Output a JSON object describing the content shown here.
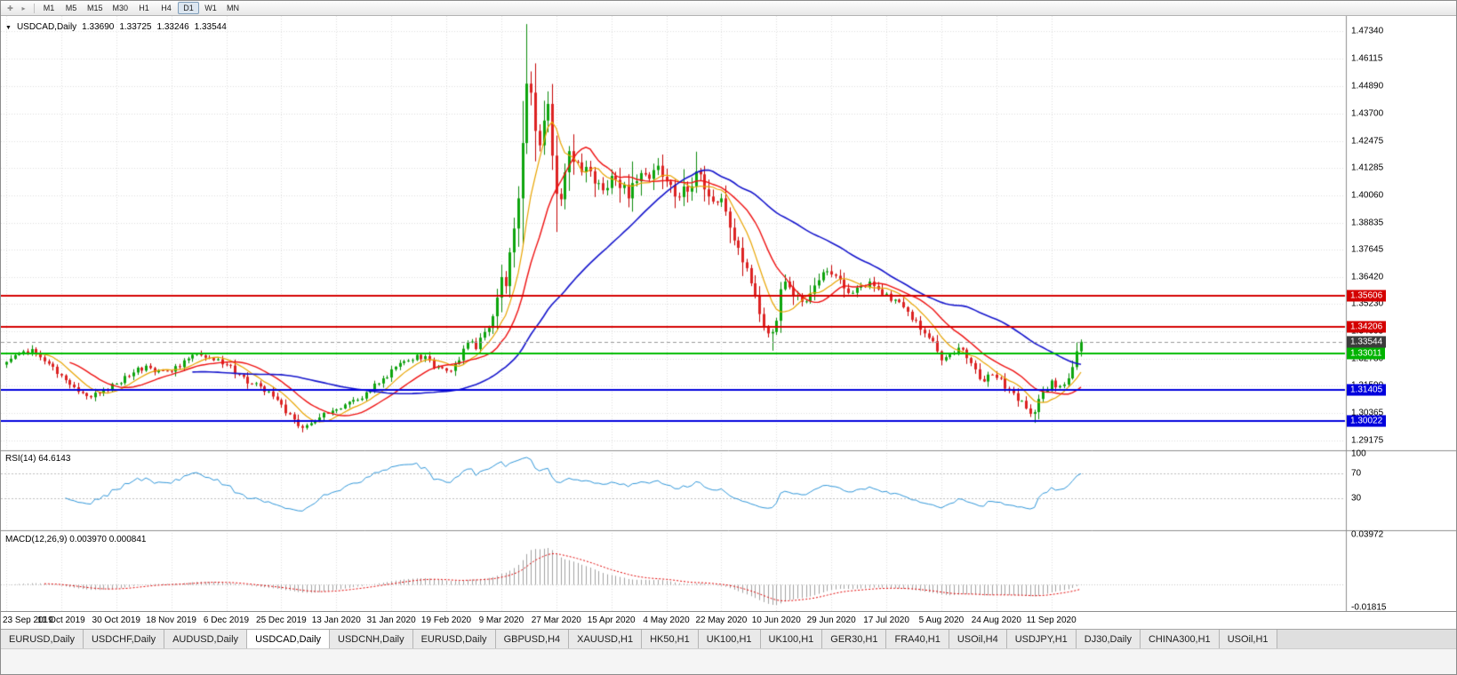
{
  "toolbar": {
    "icons": [
      {
        "name": "crosshair-icon",
        "glyph": "✚"
      },
      {
        "name": "chart-shift-icon",
        "glyph": "▸"
      }
    ],
    "timeframes": [
      "M1",
      "M5",
      "M15",
      "M30",
      "H1",
      "H4",
      "D1",
      "W1",
      "MN"
    ],
    "active_timeframe": "D1"
  },
  "chart_header": {
    "symbol": "USDCAD,Daily",
    "open": "1.33690",
    "high": "1.33725",
    "low": "1.33246",
    "close": "1.33544"
  },
  "price_scale": {
    "ticks": [
      "1.47340",
      "1.46115",
      "1.44890",
      "1.43700",
      "1.42475",
      "1.41285",
      "1.40060",
      "1.38835",
      "1.37645",
      "1.36420",
      "1.35230",
      "1.34005",
      "1.32780",
      "1.31590",
      "1.30365",
      "1.29175"
    ],
    "line_labels": [
      {
        "value": "1.35606",
        "price": 1.35606,
        "color": "#d40000"
      },
      {
        "value": "1.34206",
        "price": 1.34206,
        "color": "#d40000"
      },
      {
        "value": "1.33544",
        "price": 1.33544,
        "color": "#3c3c3c"
      },
      {
        "value": "1.33011",
        "price": 1.33011,
        "color": "#00b300"
      },
      {
        "value": "1.31405",
        "price": 1.31405,
        "color": "#0000dd"
      },
      {
        "value": "1.30022",
        "price": 1.30022,
        "color": "#0000dd"
      }
    ]
  },
  "rsi": {
    "label": "RSI(14) 64.6143",
    "period": 14,
    "value": 64.6143,
    "ticks": [
      "100",
      "70",
      "30"
    ],
    "levels": [
      70,
      30
    ],
    "color": "#2e95d8"
  },
  "macd": {
    "label": "MACD(12,26,9) 0.003970 0.000841",
    "fast": 12,
    "slow": 26,
    "signal_period": 9,
    "macd_value": "0.003970",
    "signal_value": "0.000841",
    "ticks": [
      "0.03972",
      "-0.01815"
    ],
    "histogram_color": "#a0a0a0",
    "signal_color": "#e00000"
  },
  "date_axis": [
    "23 Sep 2019",
    "11 Oct 2019",
    "30 Oct 2019",
    "18 Nov 2019",
    "6 Dec 2019",
    "25 Dec 2019",
    "13 Jan 2020",
    "31 Jan 2020",
    "19 Feb 2020",
    "9 Mar 2020",
    "27 Mar 2020",
    "15 Apr 2020",
    "4 May 2020",
    "22 May 2020",
    "10 Jun 2020",
    "29 Jun 2020",
    "17 Jul 2020",
    "5 Aug 2020",
    "24 Aug 2020",
    "11 Sep 2020"
  ],
  "tabs": {
    "items": [
      "EURUSD,Daily",
      "USDCHF,Daily",
      "AUDUSD,Daily",
      "USDCAD,Daily",
      "USDCNH,Daily",
      "EURUSD,Daily",
      "GBPUSD,H4",
      "XAUUSD,H1",
      "HK50,H1",
      "UK100,H1",
      "UK100,H1",
      "GER30,H1",
      "FRA40,H1",
      "USOil,H4",
      "USDJPY,H1",
      "DJ30,Daily",
      "CHINA300,H1",
      "USOil,H1"
    ],
    "active_index": 3
  },
  "chart_data": {
    "type": "candlestick",
    "symbol": "USDCAD",
    "timeframe": "Daily",
    "title": "USDCAD,Daily",
    "bars": 255,
    "date_tick_bars": 13,
    "x_range_dates": [
      "23 Sep 2019",
      "22 Sep 2020"
    ],
    "price_range": [
      1.288,
      1.4795
    ],
    "up_color": "#0da50d",
    "down_color": "#dd2222",
    "up_wick_color": "#0a8a0a",
    "down_wick_color": "#c40000",
    "keyframes": [
      [
        0,
        1.3265
      ],
      [
        3,
        1.3305
      ],
      [
        6,
        1.3322
      ],
      [
        9,
        1.3268
      ],
      [
        13,
        1.3205
      ],
      [
        17,
        1.3132
      ],
      [
        20,
        1.3108
      ],
      [
        23,
        1.3142
      ],
      [
        26,
        1.3168
      ],
      [
        30,
        1.3218
      ],
      [
        33,
        1.3248
      ],
      [
        36,
        1.3228
      ],
      [
        39,
        1.3222
      ],
      [
        42,
        1.3272
      ],
      [
        45,
        1.3302
      ],
      [
        48,
        1.3282
      ],
      [
        52,
        1.3252
      ],
      [
        55,
        1.3208
      ],
      [
        58,
        1.3168
      ],
      [
        61,
        1.3132
      ],
      [
        64,
        1.3096
      ],
      [
        67,
        1.3032
      ],
      [
        70,
        1.2972
      ],
      [
        73,
        1.3002
      ],
      [
        76,
        1.3038
      ],
      [
        79,
        1.3058
      ],
      [
        82,
        1.3096
      ],
      [
        86,
        1.3136
      ],
      [
        89,
        1.3192
      ],
      [
        91,
        1.3232
      ],
      [
        94,
        1.3268
      ],
      [
        97,
        1.3296
      ],
      [
        100,
        1.3272
      ],
      [
        102,
        1.3242
      ],
      [
        104,
        1.3226
      ],
      [
        107,
        1.3272
      ],
      [
        109,
        1.3352
      ],
      [
        111,
        1.3322
      ],
      [
        113,
        1.3398
      ],
      [
        115,
        1.3468
      ],
      [
        117,
        1.3642
      ],
      [
        118,
        1.3602
      ],
      [
        119,
        1.3752
      ],
      [
        120,
        1.3858
      ],
      [
        121,
        1.3992
      ],
      [
        122,
        1.4238
      ],
      [
        123,
        1.4502
      ],
      [
        124,
        1.4462
      ],
      [
        125,
        1.4292
      ],
      [
        126,
        1.4228
      ],
      [
        127,
        1.4338
      ],
      [
        128,
        1.4412
      ],
      [
        129,
        1.4182
      ],
      [
        130,
        1.4012
      ],
      [
        131,
        1.3988
      ],
      [
        132,
        1.4108
      ],
      [
        133,
        1.4202
      ],
      [
        135,
        1.4152
      ],
      [
        137,
        1.4132
      ],
      [
        139,
        1.4058
      ],
      [
        141,
        1.4028
      ],
      [
        143,
        1.4092
      ],
      [
        145,
        1.4038
      ],
      [
        147,
        1.3992
      ],
      [
        149,
        1.4068
      ],
      [
        151,
        1.4098
      ],
      [
        153,
        1.4118
      ],
      [
        155,
        1.4088
      ],
      [
        157,
        1.4052
      ],
      [
        159,
        1.3998
      ],
      [
        161,
        1.4022
      ],
      [
        163,
        1.4112
      ],
      [
        165,
        1.4032
      ],
      [
        167,
        1.3978
      ],
      [
        169,
        1.3992
      ],
      [
        171,
        1.3862
      ],
      [
        173,
        1.3772
      ],
      [
        175,
        1.3682
      ],
      [
        177,
        1.3562
      ],
      [
        179,
        1.3422
      ],
      [
        181,
        1.3398
      ],
      [
        182,
        1.3448
      ],
      [
        183,
        1.3588
      ],
      [
        184,
        1.3622
      ],
      [
        186,
        1.3558
      ],
      [
        188,
        1.3532
      ],
      [
        190,
        1.3568
      ],
      [
        192,
        1.3628
      ],
      [
        194,
        1.3668
      ],
      [
        196,
        1.3648
      ],
      [
        198,
        1.3592
      ],
      [
        200,
        1.3572
      ],
      [
        202,
        1.3602
      ],
      [
        204,
        1.3622
      ],
      [
        206,
        1.3588
      ],
      [
        208,
        1.3568
      ],
      [
        210,
        1.3542
      ],
      [
        212,
        1.3508
      ],
      [
        214,
        1.3452
      ],
      [
        216,
        1.3408
      ],
      [
        218,
        1.3372
      ],
      [
        220,
        1.3312
      ],
      [
        221,
        1.3272
      ],
      [
        223,
        1.3298
      ],
      [
        225,
        1.3328
      ],
      [
        227,
        1.3282
      ],
      [
        229,
        1.3232
      ],
      [
        231,
        1.3178
      ],
      [
        233,
        1.3208
      ],
      [
        235,
        1.3192
      ],
      [
        237,
        1.3138
      ],
      [
        239,
        1.3092
      ],
      [
        241,
        1.3058
      ],
      [
        243,
        1.3042
      ],
      [
        245,
        1.3132
      ],
      [
        247,
        1.3182
      ],
      [
        249,
        1.3158
      ],
      [
        251,
        1.3192
      ],
      [
        252,
        1.3242
      ],
      [
        253,
        1.3312
      ],
      [
        254,
        1.33544
      ]
    ],
    "wick_extremes": [
      [
        70,
        "low",
        1.2952
      ],
      [
        123,
        "high",
        1.4668
      ],
      [
        181,
        "low",
        1.3315
      ],
      [
        243,
        "low",
        1.2994
      ]
    ],
    "hlines": [
      {
        "price": 1.35606,
        "color": "#d40000"
      },
      {
        "price": 1.34206,
        "color": "#d40000"
      },
      {
        "price": 1.33011,
        "color": "#00bb00"
      },
      {
        "price": 1.31405,
        "color": "#0000dd"
      },
      {
        "price": 1.30022,
        "color": "#0000dd"
      }
    ],
    "bid_line": {
      "price": 1.33544,
      "color": "#9a9a9a"
    },
    "moving_averages": [
      {
        "period": 8,
        "color": "#e8a400",
        "width": 1.2
      },
      {
        "period": 16,
        "color": "#ee1111",
        "width": 1.4
      },
      {
        "period": 45,
        "color": "#1515cc",
        "width": 1.6
      }
    ],
    "indicators": {
      "rsi": {
        "period": 14,
        "current": 64.6143,
        "levels": [
          70,
          30
        ]
      },
      "macd": {
        "fast": 12,
        "slow": 26,
        "signal": 9,
        "current_macd": 0.00397,
        "current_signal": 0.000841,
        "scale_max": 0.03972,
        "scale_min": -0.01815
      }
    }
  }
}
